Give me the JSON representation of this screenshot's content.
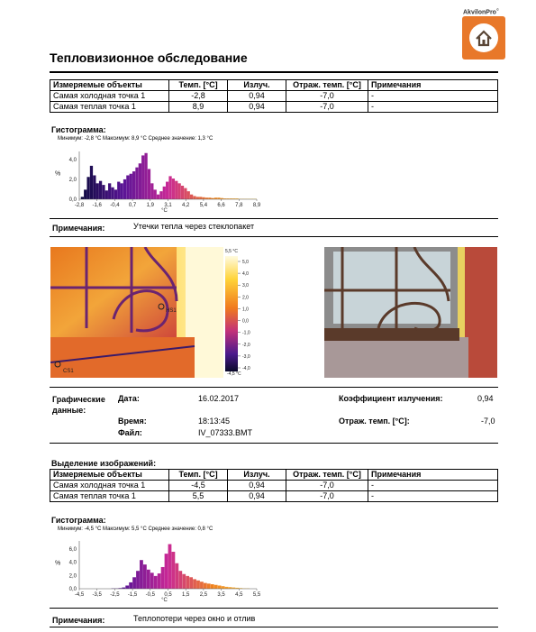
{
  "brand": {
    "name": "AkvilonPro",
    "mark": "©"
  },
  "title": "Тепловизионное обследование",
  "table_headers": [
    "Измеряемые объекты",
    "Темп. [°C]",
    "Излуч.",
    "Отраж. темп. [°C]",
    "Примечания"
  ],
  "table1": [
    [
      "Самая холодная точка 1",
      "-2,8",
      "0,94",
      "-7,0",
      "-"
    ],
    [
      "Самая теплая точка 1",
      "8,9",
      "0,94",
      "-7,0",
      "-"
    ]
  ],
  "hist1": {
    "label": "Гистограмма:",
    "stats": "Минимум: -2,8 °C Максимум: 8,9 °C Среднее значение: 1,3 °C",
    "ylabel": "%",
    "yticks": [
      "4,0",
      "2,0",
      "0,0"
    ],
    "xticks": [
      "-2,8",
      "-1,6",
      "-0,4",
      "0,7",
      "1,9",
      "3,1",
      "4,2",
      "5,4",
      "6,6",
      "7,8",
      "8,9"
    ],
    "xunit": "°C"
  },
  "notes1": {
    "label": "Примечания:",
    "text": "Утечки тепла через стеклопакет"
  },
  "thermal_scale": {
    "top": "5,5 °C",
    "bottom": "-4,5 °C",
    "ticks": [
      "5,0",
      "4,0",
      "3,0",
      "2,0",
      "1,0",
      "0,0",
      "-1,0",
      "-2,0",
      "-3,0",
      "-4,0"
    ]
  },
  "thermal_markers": {
    "cs1": "CS1",
    "hs1": "HS1"
  },
  "graphic": {
    "label": "Графические данные:",
    "date_label": "Дата:",
    "date": "16.02.2017",
    "time_label": "Время:",
    "time": "18:13:45",
    "file_label": "Файл:",
    "file": "IV_07333.BMT",
    "emis_label": "Коэффициент излучения:",
    "emis": "0,94",
    "refl_label": "Отраж. темп. [°C]:",
    "refl": "-7,0"
  },
  "selection_label": "Выделение изображений:",
  "table2": [
    [
      "Самая холодная точка 1",
      "-4,5",
      "0,94",
      "-7,0",
      "-"
    ],
    [
      "Самая теплая точка 1",
      "5,5",
      "0,94",
      "-7,0",
      "-"
    ]
  ],
  "hist2": {
    "label": "Гистограмма:",
    "stats": "Минимум: -4,5 °C Максимум: 5,5 °C Среднее значение: 0,8 °C",
    "ylabel": "%",
    "yticks": [
      "6,0",
      "4,0",
      "2,0",
      "0,0"
    ],
    "xticks": [
      "-4,5",
      "-3,5",
      "-2,5",
      "-1,5",
      "-0,5",
      "0,5",
      "1,5",
      "2,5",
      "3,5",
      "4,5",
      "5,5"
    ],
    "xunit": "°C"
  },
  "notes2": {
    "label": "Примечания:",
    "text": "Теплопотери через окно и отлив"
  },
  "chart_data": [
    {
      "type": "bar",
      "xlabel": "°C",
      "ylabel": "%",
      "xlim": [
        -2.8,
        8.9
      ],
      "ylim": [
        0,
        6
      ],
      "x": [
        -2.6,
        -2.4,
        -2.2,
        -2.0,
        -1.8,
        -1.6,
        -1.4,
        -1.2,
        -1.0,
        -0.8,
        -0.6,
        -0.4,
        -0.2,
        0.0,
        0.2,
        0.4,
        0.6,
        0.8,
        1.0,
        1.2,
        1.4,
        1.6,
        1.8,
        2.0,
        2.2,
        2.4,
        2.6,
        2.8,
        3.0,
        3.2,
        3.4,
        3.6,
        3.8,
        4.0,
        4.2,
        4.4,
        4.6,
        4.8,
        5.0,
        5.2,
        5.4,
        5.6,
        5.8,
        6.0,
        6.2,
        6.4,
        6.6,
        6.8,
        7.0,
        7.2,
        7.4,
        7.6,
        7.8,
        8.0,
        8.2,
        8.4,
        8.6,
        8.8
      ],
      "values": [
        0.3,
        1.2,
        2.8,
        4.2,
        3.0,
        2.0,
        2.3,
        1.8,
        1.1,
        2.0,
        1.5,
        1.2,
        2.2,
        2.0,
        2.5,
        3.0,
        3.2,
        3.5,
        4.0,
        4.5,
        5.5,
        5.8,
        3.8,
        2.0,
        1.2,
        0.6,
        1.0,
        1.6,
        2.2,
        2.9,
        2.6,
        2.3,
        2.0,
        1.7,
        1.4,
        1.0,
        0.6,
        0.4,
        0.3,
        0.3,
        0.25,
        0.2,
        0.2,
        0.15,
        0.2,
        0.2,
        0.15,
        0.1,
        0.1,
        0.1,
        0.1,
        0.1,
        0.05,
        0.05,
        0.05,
        0.05,
        0.05,
        0.05
      ]
    },
    {
      "type": "bar",
      "xlabel": "°C",
      "ylabel": "%",
      "xlim": [
        -4.5,
        5.5
      ],
      "ylim": [
        0,
        7.5
      ],
      "x": [
        -4.4,
        -4.2,
        -4.0,
        -3.8,
        -3.6,
        -3.4,
        -3.2,
        -3.0,
        -2.8,
        -2.6,
        -2.4,
        -2.2,
        -2.0,
        -1.8,
        -1.6,
        -1.4,
        -1.2,
        -1.0,
        -0.8,
        -0.6,
        -0.4,
        -0.2,
        0.0,
        0.2,
        0.4,
        0.6,
        0.8,
        1.0,
        1.2,
        1.4,
        1.6,
        1.8,
        2.0,
        2.2,
        2.4,
        2.6,
        2.8,
        3.0,
        3.2,
        3.4,
        3.6,
        3.8,
        4.0,
        4.2,
        4.4,
        4.6,
        4.8,
        5.0,
        5.2,
        5.4
      ],
      "values": [
        0,
        0,
        0,
        0,
        0,
        0,
        0,
        0,
        0,
        0.05,
        0.05,
        0.1,
        0.2,
        0.5,
        1.0,
        1.8,
        2.8,
        4.5,
        3.8,
        3.0,
        2.5,
        2.0,
        2.4,
        3.4,
        5.5,
        7.0,
        5.8,
        4.0,
        2.8,
        2.3,
        2.0,
        1.8,
        1.5,
        1.3,
        1.1,
        0.9,
        0.8,
        0.7,
        0.6,
        0.5,
        0.4,
        0.3,
        0.25,
        0.2,
        0.15,
        0.1,
        0.05,
        0.05,
        0,
        0
      ]
    }
  ]
}
